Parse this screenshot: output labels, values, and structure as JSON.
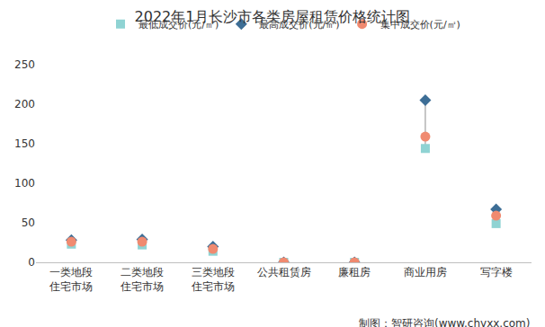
{
  "chart_data": {
    "type": "scatter",
    "title": "2022年1月长沙市各类房屋租赁价格统计图",
    "categories": [
      "一类地段\n住宅市场",
      "二类地段\n住宅市场",
      "三类地段\n住宅市场",
      "公共租赁房",
      "廉租房",
      "商业用房",
      "写字楼"
    ],
    "series": [
      {
        "name": "最低成交价(元/㎡)",
        "color": "#8fd3d3",
        "marker": "square",
        "values": [
          23,
          22,
          14,
          0,
          0,
          144,
          49
        ]
      },
      {
        "name": "最高成交价(元/㎡)",
        "color": "#3d6e96",
        "marker": "diamond",
        "values": [
          28,
          29,
          20,
          0,
          0,
          205,
          67
        ]
      },
      {
        "name": "集中成交价(元/㎡)",
        "color": "#f08a70",
        "marker": "circle",
        "values": [
          26,
          26,
          17,
          0,
          0,
          159,
          59
        ]
      }
    ],
    "ylim": [
      0,
      250
    ],
    "yticks": [
      0,
      50,
      100,
      150,
      200,
      250
    ],
    "grid": false,
    "legend": "top",
    "annotations": [
      "制图：智研咨询(www.chyxx.com)"
    ]
  }
}
